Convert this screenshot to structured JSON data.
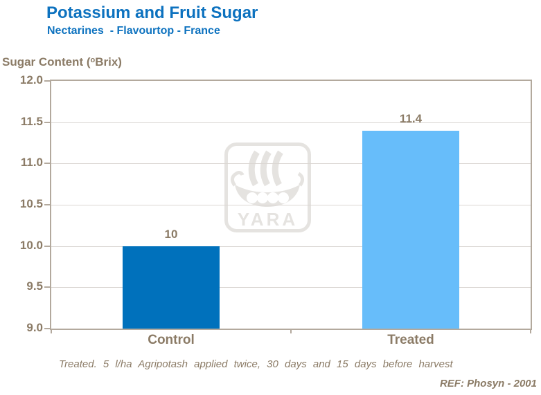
{
  "chart_data": {
    "type": "bar",
    "title": "Potassium and Fruit Sugar",
    "subtitle": "Nectarines  - Flavourtop - France",
    "ylabel": "Sugar Content (°Brix)",
    "ylabel_parts": {
      "prefix": "Sugar Content (",
      "sup": "o",
      "suffix": "Brix)"
    },
    "categories": [
      "Control",
      "Treated"
    ],
    "values": [
      10,
      11.4
    ],
    "value_labels": [
      "10",
      "11.4"
    ],
    "ylim": [
      9.0,
      12.0
    ],
    "ytick_interval": 0.5,
    "yticks": [
      "12.0",
      "11.5",
      "11.0",
      "10.5",
      "10.0",
      "9.5",
      "9.0"
    ],
    "grid": true,
    "legend": "none",
    "bar_colors": [
      "#0071bc",
      "#67bdfa"
    ],
    "watermark": "YARA",
    "footnote": "Treated. 5 l/ha Agripotash applied twice, 30 days and 15 days before harvest",
    "reference": "REF: Phosyn - 2001"
  },
  "colors": {
    "title_blue": "#0d72bf",
    "text_brown": "#8b7b66",
    "axis_line": "#b3a99d",
    "gridline": "#dad6d2",
    "watermark_gray": "#e5e3e0",
    "bar_control": "#0071bc",
    "bar_treated": "#67bdfa",
    "background": "#ffffff"
  }
}
